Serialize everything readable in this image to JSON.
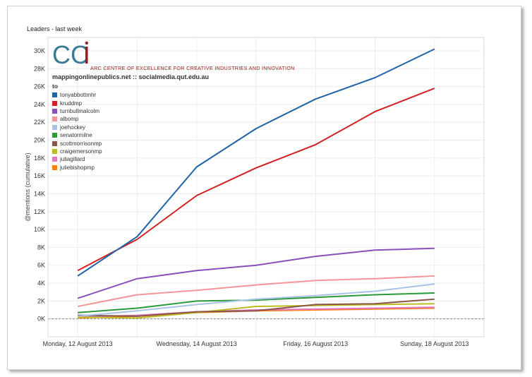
{
  "title": "Leaders - last week",
  "logo": {
    "letters": "CCi",
    "text": "ARC CENTRE OF EXCELLENCE FOR CREATIVE INDUSTRIES AND INNOVATION",
    "color_main": "#3a7a95",
    "color_accent": "#9b1b1b"
  },
  "source_line": "mappingonlinepublics.net :: socialmedia.qut.edu.au",
  "legend_title": "to",
  "chart_data": {
    "type": "line",
    "title": "Leaders - last week",
    "xlabel": "",
    "ylabel": "@mentions (cumulative)",
    "x": [
      "2013-08-12",
      "2013-08-13",
      "2013-08-14",
      "2013-08-15",
      "2013-08-16",
      "2013-08-17",
      "2013-08-18"
    ],
    "x_tick_labels": [
      "Monday, 12 August 2013",
      "Wednesday, 14 August 2013",
      "Friday, 16 August 2013",
      "Sunday, 18 August 2013"
    ],
    "x_tick_dates": [
      "2013-08-12",
      "2013-08-14",
      "2013-08-16",
      "2013-08-18"
    ],
    "ylim": [
      -2000,
      31500
    ],
    "y_ticks": [
      0,
      2000,
      4000,
      6000,
      8000,
      10000,
      12000,
      14000,
      16000,
      18000,
      20000,
      22000,
      24000,
      26000,
      28000,
      30000
    ],
    "y_tick_labels": [
      "0K",
      "2K",
      "4K",
      "6K",
      "8K",
      "10K",
      "12K",
      "14K",
      "16K",
      "18K",
      "20K",
      "22K",
      "24K",
      "26K",
      "28K",
      "30K"
    ],
    "grid": true,
    "legend_position": "top-left",
    "series": [
      {
        "name": "tonyabbottmhr",
        "color": "#1f63a8",
        "values": [
          4800,
          9200,
          17000,
          21300,
          24600,
          27000,
          30200
        ]
      },
      {
        "name": "kruddmp",
        "color": "#d42020",
        "values": [
          5400,
          8900,
          13800,
          16900,
          19500,
          23200,
          25800
        ]
      },
      {
        "name": "turnbullmalcolm",
        "color": "#8a4fbd",
        "values": [
          2300,
          4500,
          5400,
          6000,
          7000,
          7700,
          7900
        ]
      },
      {
        "name": "albomp",
        "color": "#f4959a",
        "values": [
          1400,
          2700,
          3200,
          3800,
          4300,
          4500,
          4800
        ]
      },
      {
        "name": "joehockey",
        "color": "#a9c3e6",
        "values": [
          300,
          900,
          1600,
          2200,
          2600,
          3100,
          3900
        ]
      },
      {
        "name": "senatormilne",
        "color": "#2a9a3a",
        "values": [
          700,
          1200,
          2000,
          2100,
          2400,
          2700,
          2900
        ]
      },
      {
        "name": "scottmorrisonmp",
        "color": "#8c564b",
        "values": [
          400,
          300,
          800,
          900,
          1600,
          1700,
          2200
        ]
      },
      {
        "name": "craigemersonmp",
        "color": "#bcbd22",
        "values": [
          200,
          100,
          700,
          1400,
          1500,
          1600,
          1700
        ]
      },
      {
        "name": "juliagillard",
        "color": "#e377c2",
        "values": [
          200,
          400,
          800,
          1000,
          1100,
          1200,
          1300
        ]
      },
      {
        "name": "juliebishopmp",
        "color": "#ff7f0e",
        "values": [
          100,
          300,
          700,
          900,
          1000,
          1100,
          1200
        ]
      }
    ]
  }
}
